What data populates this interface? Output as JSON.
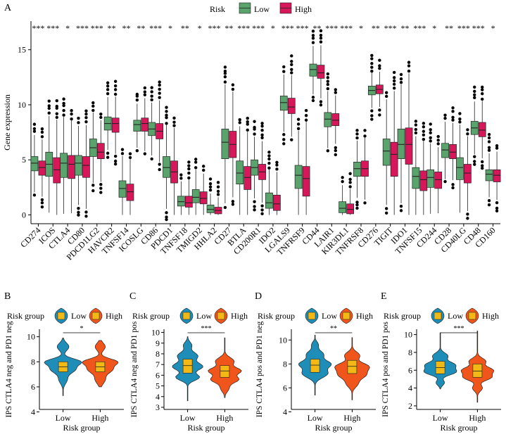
{
  "panel_labels": [
    "A",
    "B",
    "C",
    "D",
    "E"
  ],
  "colors": {
    "low_a": "#5aa36c",
    "high_a": "#d6185a",
    "low_b": "#1e8eb8",
    "high_b": "#f0561c",
    "box_fill": "#f1b816",
    "axis": "#000000",
    "dots": "#000000"
  },
  "chart_data": [
    {
      "type": "box",
      "panel": "A",
      "legend_title": "Risk",
      "legend_labels": [
        "Low",
        "High"
      ],
      "xlabel": "",
      "ylabel": "Gene expression",
      "ylim": [
        -0.8,
        17.6
      ],
      "yticks": [
        0,
        5,
        10,
        15
      ],
      "categories": [
        "CD274",
        "ICOS",
        "CTLA4",
        "CD80",
        "PDCD1LG2",
        "HAVCR2",
        "TNFSF14",
        "ICOSLG",
        "CD86",
        "PDCD1",
        "TNFSF18",
        "TMIGD2",
        "HHLA2",
        "CD27",
        "BTLA",
        "CD200R1",
        "IDO2",
        "LGALS9",
        "TNFRSF9",
        "CD44",
        "LAIR1",
        "KIR3DL1",
        "TNFRSF8",
        "CD276",
        "TIGIT",
        "IDO1",
        "TNFSF15",
        "CD244",
        "CD28",
        "CD40LG",
        "CD48",
        "CD160"
      ],
      "significance": [
        "***",
        "***",
        "*",
        "***",
        "***",
        "**",
        "**",
        "**",
        "***",
        "*",
        "**",
        "*",
        "***",
        "**",
        "***",
        "***",
        "*",
        "***",
        "***",
        "**",
        "***",
        "***",
        "*",
        "**",
        "***",
        "**",
        "***",
        "*",
        "**",
        "***",
        "***",
        "*"
      ],
      "low": [
        [
          4.0,
          4.7,
          5.3
        ],
        [
          3.5,
          4.6,
          5.7
        ],
        [
          3.4,
          4.7,
          5.6
        ],
        [
          3.6,
          4.7,
          5.4
        ],
        [
          5.3,
          6.1,
          6.9
        ],
        [
          7.7,
          8.3,
          8.9
        ],
        [
          1.6,
          2.4,
          3.1
        ],
        [
          7.6,
          8.2,
          8.6
        ],
        [
          7.2,
          7.8,
          8.4
        ],
        [
          3.4,
          4.3,
          5.3
        ],
        [
          0.8,
          1.2,
          1.7
        ],
        [
          1.1,
          1.6,
          2.3
        ],
        [
          0.2,
          0.5,
          0.9
        ],
        [
          5.1,
          6.6,
          7.8
        ],
        [
          2.8,
          3.8,
          4.9
        ],
        [
          3.6,
          4.3,
          5.0
        ],
        [
          0.6,
          1.1,
          2.0
        ],
        [
          9.5,
          10.2,
          10.8
        ],
        [
          2.4,
          3.6,
          4.5
        ],
        [
          12.6,
          13.2,
          13.7
        ],
        [
          8.0,
          8.7,
          9.3
        ],
        [
          0.2,
          0.6,
          1.2
        ],
        [
          3.5,
          4.2,
          4.8
        ],
        [
          10.9,
          11.3,
          11.7
        ],
        [
          4.5,
          5.8,
          6.9
        ],
        [
          5.1,
          6.4,
          7.8
        ],
        [
          2.4,
          3.5,
          4.3
        ],
        [
          2.5,
          3.4,
          4.1
        ],
        [
          5.2,
          5.9,
          6.5
        ],
        [
          3.2,
          4.3,
          5.2
        ],
        [
          7.3,
          7.9,
          8.5
        ],
        [
          3.1,
          3.7,
          4.1
        ]
      ],
      "high": [
        [
          3.6,
          4.3,
          4.9
        ],
        [
          2.9,
          4.1,
          5.2
        ],
        [
          3.3,
          4.6,
          5.4
        ],
        [
          3.4,
          4.5,
          5.3
        ],
        [
          5.1,
          5.7,
          6.5
        ],
        [
          7.5,
          8.3,
          8.8
        ],
        [
          1.3,
          2.1,
          2.8
        ],
        [
          7.6,
          8.3,
          8.8
        ],
        [
          6.9,
          7.6,
          8.3
        ],
        [
          2.9,
          3.9,
          4.9
        ],
        [
          0.7,
          1.1,
          1.7
        ],
        [
          1.0,
          1.5,
          2.1
        ],
        [
          0.1,
          0.4,
          0.7
        ],
        [
          5.2,
          6.4,
          7.6
        ],
        [
          2.3,
          3.4,
          4.4
        ],
        [
          3.2,
          3.9,
          4.6
        ],
        [
          0.4,
          1.0,
          1.8
        ],
        [
          9.2,
          9.8,
          10.6
        ],
        [
          1.7,
          3.3,
          4.4
        ],
        [
          12.4,
          12.9,
          13.6
        ],
        [
          8.1,
          8.6,
          9.2
        ],
        [
          0.1,
          0.5,
          1.0
        ],
        [
          3.5,
          4.2,
          4.9
        ],
        [
          11.0,
          11.4,
          11.8
        ],
        [
          3.5,
          5.5,
          6.6
        ],
        [
          4.6,
          6.4,
          7.9
        ],
        [
          2.2,
          3.2,
          4.0
        ],
        [
          2.4,
          3.2,
          3.9
        ],
        [
          5.1,
          5.7,
          6.4
        ],
        [
          2.9,
          3.8,
          4.6
        ],
        [
          7.1,
          7.7,
          8.4
        ],
        [
          3.0,
          3.6,
          4.1
        ]
      ]
    },
    {
      "type": "violin",
      "panel": "B",
      "legend_title": "Risk group",
      "legend_labels": [
        "Low",
        "High"
      ],
      "categories": [
        "Low",
        "High"
      ],
      "xlabel": "Risk group",
      "ylabel": "IPS CTLA4 neg and PD1 neg",
      "ylim": [
        4.2,
        10.6
      ],
      "yticks": [
        4,
        6,
        8,
        10
      ],
      "significance": "*",
      "medians": [
        7.6,
        7.6
      ],
      "quartiles": [
        [
          7.2,
          8.0
        ],
        [
          7.2,
          8.0
        ]
      ]
    },
    {
      "type": "violin",
      "panel": "C",
      "legend_title": "Risk group",
      "legend_labels": [
        "Low",
        "High"
      ],
      "categories": [
        "Low",
        "High"
      ],
      "xlabel": "Risk group",
      "ylabel": "IPS CTLA4 neg and PD1 pos",
      "ylim": [
        2.8,
        10.3
      ],
      "yticks": [
        3,
        4,
        5,
        6,
        7,
        8,
        9,
        10
      ],
      "significance": "***",
      "medians": [
        6.9,
        6.4
      ],
      "quartiles": [
        [
          6.2,
          7.5
        ],
        [
          5.8,
          6.9
        ]
      ]
    },
    {
      "type": "violin",
      "panel": "D",
      "legend_title": "Risk group",
      "legend_labels": [
        "Low",
        "High"
      ],
      "categories": [
        "Low",
        "High"
      ],
      "xlabel": "Risk group",
      "ylabel": "IPS CTLA4 pos and PD1 neg",
      "ylim": [
        4.2,
        10.9
      ],
      "yticks": [
        4,
        6,
        8,
        10
      ],
      "significance": "**",
      "medians": [
        7.9,
        7.8
      ],
      "quartiles": [
        [
          7.3,
          8.4
        ],
        [
          7.2,
          8.3
        ]
      ]
    },
    {
      "type": "violin",
      "panel": "E",
      "legend_title": "Risk group",
      "legend_labels": [
        "Low",
        "High"
      ],
      "categories": [
        "Low",
        "High"
      ],
      "xlabel": "Risk group",
      "ylabel": "IPS CTLA4 pos and PD1 pos",
      "ylim": [
        1.6,
        10.6
      ],
      "yticks": [
        2,
        4,
        6,
        8,
        10
      ],
      "significance": "***",
      "medians": [
        6.3,
        5.9
      ],
      "quartiles": [
        [
          5.6,
          7.0
        ],
        [
          5.2,
          6.7
        ]
      ]
    }
  ]
}
